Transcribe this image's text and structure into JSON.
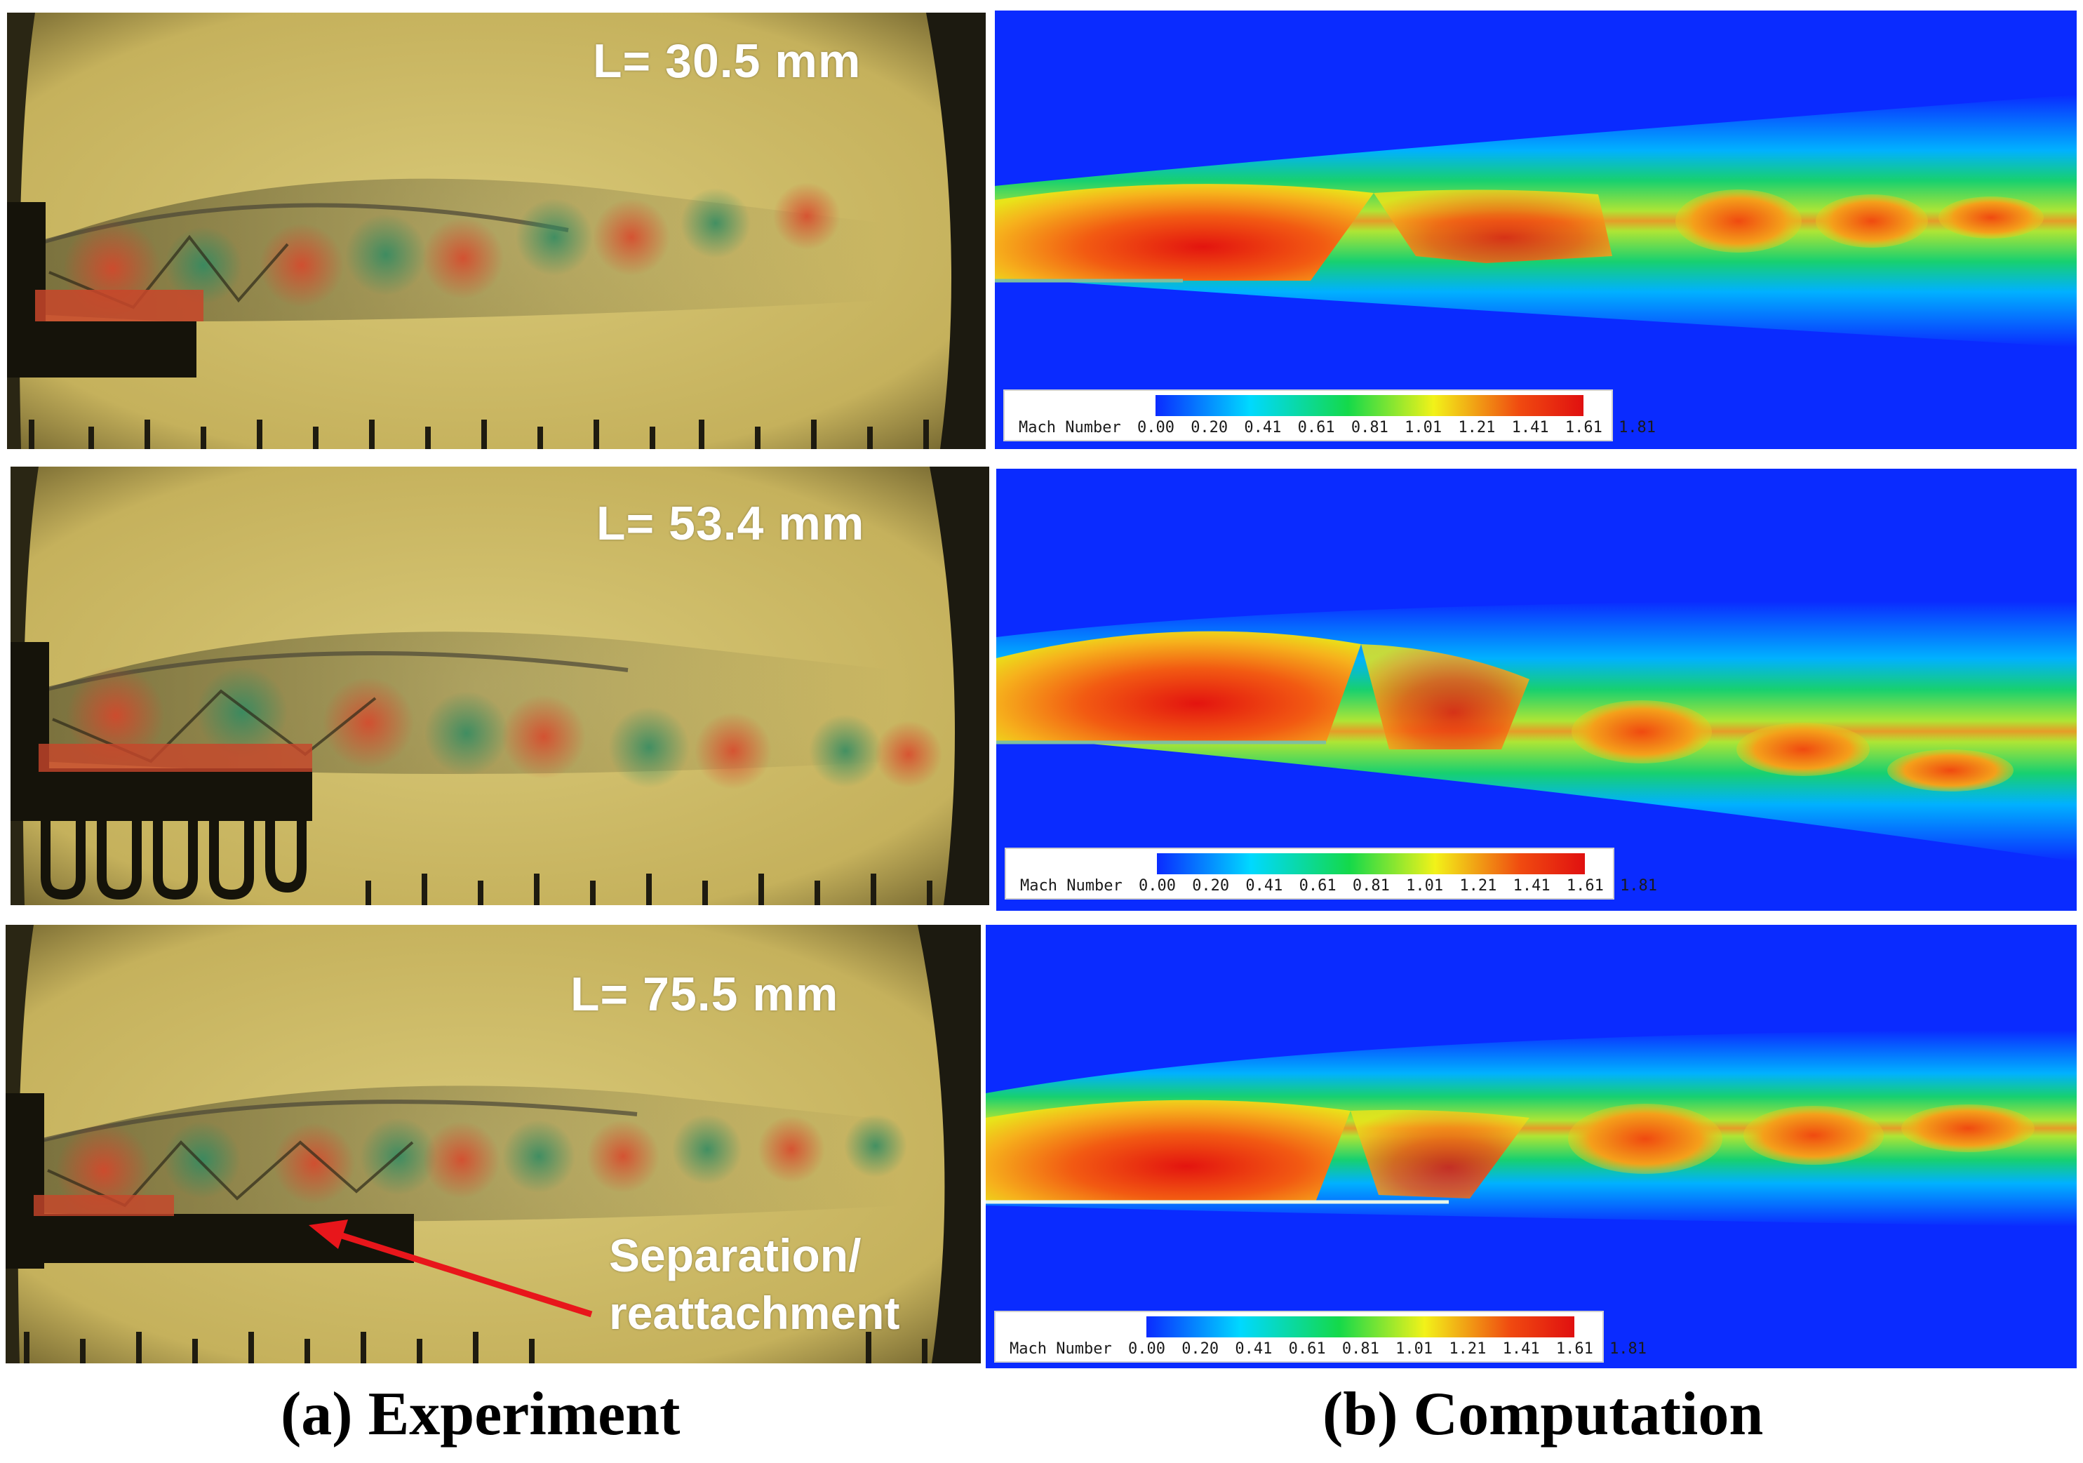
{
  "experiment": {
    "panels": [
      {
        "label": "L= 30.5 mm"
      },
      {
        "label": "L= 53.4 mm"
      },
      {
        "label": "L= 75.5 mm"
      }
    ],
    "annotation": {
      "line1": "Separation/",
      "line2": "reattachment"
    },
    "caption": "(a) Experiment"
  },
  "computation": {
    "legend": {
      "title": "Mach Number",
      "ticks": [
        "0.00",
        "0.20",
        "0.41",
        "0.61",
        "0.81",
        "1.01",
        "1.21",
        "1.41",
        "1.61",
        "1.81"
      ],
      "colors": [
        "#0a2bff",
        "#00d9ff",
        "#14d94a",
        "#f2f219",
        "#f04a10",
        "#e01010"
      ]
    },
    "caption": "(b) Computation"
  },
  "colors": {
    "photo_background": "#c9b965",
    "field_background": "#0a2bff",
    "arrow": "#e8161b"
  }
}
